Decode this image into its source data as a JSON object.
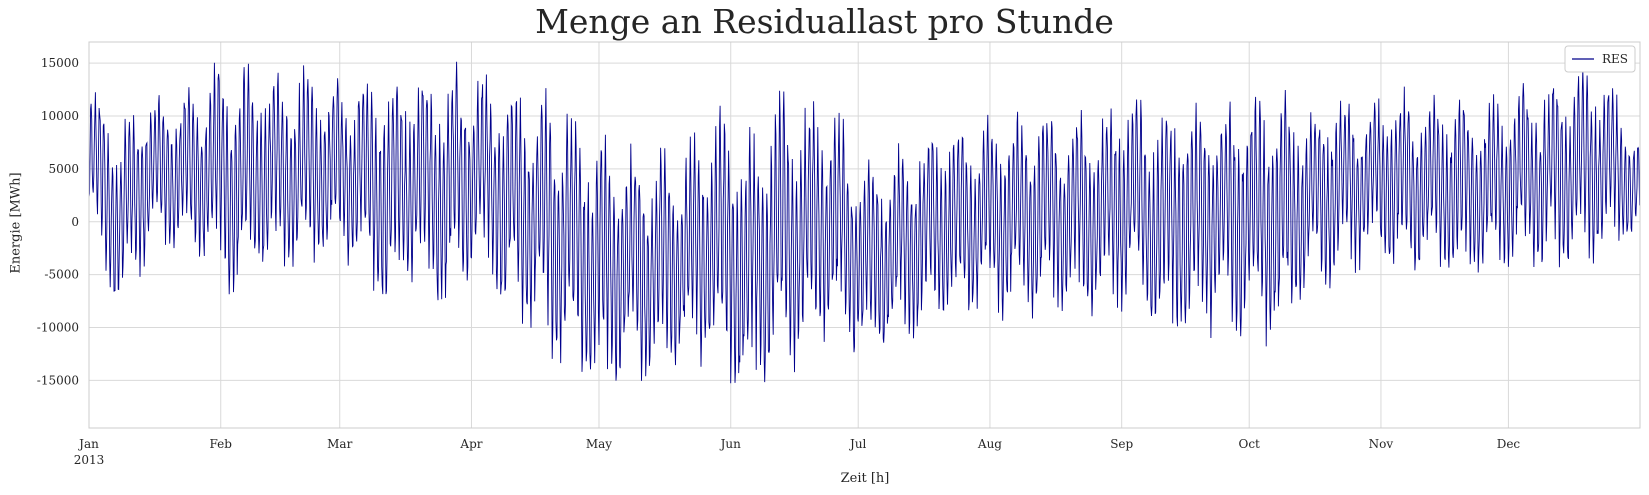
{
  "chart_data": {
    "type": "line",
    "title": "Menge an Residuallast pro Stunde",
    "xlabel": "Zeit [h]",
    "ylabel": "Energie [MWh]",
    "year_label": "2013",
    "x_ticks": [
      "Jan",
      "Feb",
      "Mar",
      "Apr",
      "May",
      "Jun",
      "Jul",
      "Aug",
      "Sep",
      "Oct",
      "Nov",
      "Dec"
    ],
    "x_range": [
      "2013-01-01",
      "2013-12-31"
    ],
    "ylim": [
      -19500,
      17000
    ],
    "y_ticks": [
      15000,
      10000,
      5000,
      0,
      -5000,
      -10000,
      -15000
    ],
    "grid": true,
    "legend_position": "top-right",
    "series": [
      {
        "name": "RES",
        "color": "#00008b",
        "x": [
          "2013-01-01",
          "2013-01-08",
          "2013-01-15",
          "2013-01-22",
          "2013-01-29",
          "2013-02-05",
          "2013-02-12",
          "2013-02-19",
          "2013-02-26",
          "2013-03-05",
          "2013-03-12",
          "2013-03-19",
          "2013-03-26",
          "2013-04-02",
          "2013-04-09",
          "2013-04-16",
          "2013-04-23",
          "2013-04-30",
          "2013-05-07",
          "2013-05-14",
          "2013-05-21",
          "2013-05-28",
          "2013-06-04",
          "2013-06-11",
          "2013-06-18",
          "2013-06-25",
          "2013-07-02",
          "2013-07-09",
          "2013-07-16",
          "2013-07-23",
          "2013-07-30",
          "2013-08-06",
          "2013-08-13",
          "2013-08-20",
          "2013-08-27",
          "2013-09-03",
          "2013-09-10",
          "2013-09-17",
          "2013-09-24",
          "2013-10-01",
          "2013-10-08",
          "2013-10-15",
          "2013-10-22",
          "2013-10-29",
          "2013-11-05",
          "2013-11-12",
          "2013-11-19",
          "2013-11-26",
          "2013-12-03",
          "2013-12-10",
          "2013-12-17",
          "2013-12-24",
          "2013-12-31"
        ],
        "max": [
          13500,
          9500,
          12500,
          12000,
          15000,
          15200,
          14500,
          15000,
          14000,
          14000,
          14200,
          14000,
          15200,
          15000,
          13800,
          13000,
          12000,
          9000,
          7500,
          7000,
          7000,
          11900,
          8000,
          12500,
          12000,
          11800,
          6000,
          7000,
          9000,
          9500,
          10000,
          10500,
          11000,
          11000,
          10000,
          12900,
          11000,
          12000,
          12000,
          12200,
          13000,
          10500,
          12500,
          11500,
          13000,
          12000,
          12000,
          11800,
          13000,
          13500,
          15200,
          14800,
          8500
        ],
        "min": [
          -500,
          -9500,
          -3500,
          -2500,
          -5500,
          -7600,
          -5000,
          -5000,
          -4500,
          -4000,
          -10000,
          -6000,
          -10500,
          -4500,
          -9000,
          -11500,
          -14500,
          -17500,
          -15500,
          -15500,
          -14000,
          -14000,
          -17500,
          -16000,
          -13500,
          -11500,
          -14000,
          -12500,
          -11000,
          -9500,
          -9000,
          -9500,
          -9000,
          -10000,
          -8500,
          -8500,
          -11000,
          -12200,
          -10500,
          -11500,
          -12000,
          -7000,
          -6000,
          -4000,
          -5500,
          -5000,
          -6000,
          -6000,
          -4500,
          -5500,
          -5200,
          -3000,
          -2500
        ]
      }
    ]
  }
}
